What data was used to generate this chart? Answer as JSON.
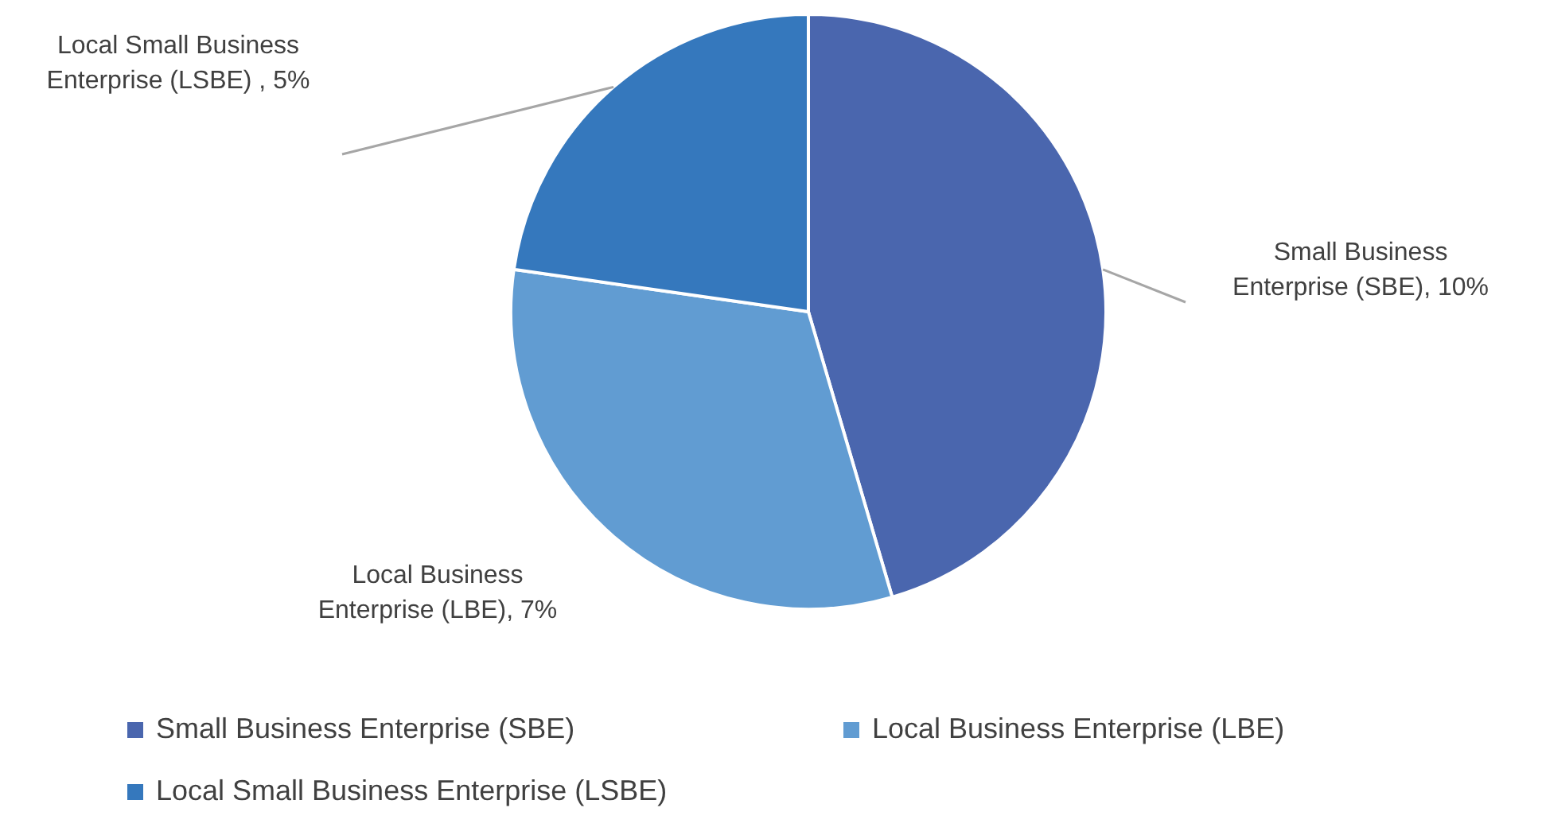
{
  "chart_data": {
    "type": "pie",
    "categories": [
      "Small Business Enterprise (SBE)",
      "Local Business Enterprise (LBE)",
      "Local Small Business Enterprise (LSBE)"
    ],
    "values": [
      10,
      7,
      5
    ],
    "value_labels": [
      ", 10%",
      ", 7%",
      " , 5%"
    ],
    "colors": [
      "#4a66ae",
      "#619cd2",
      "#3578bd"
    ],
    "legend": "bottom"
  }
}
